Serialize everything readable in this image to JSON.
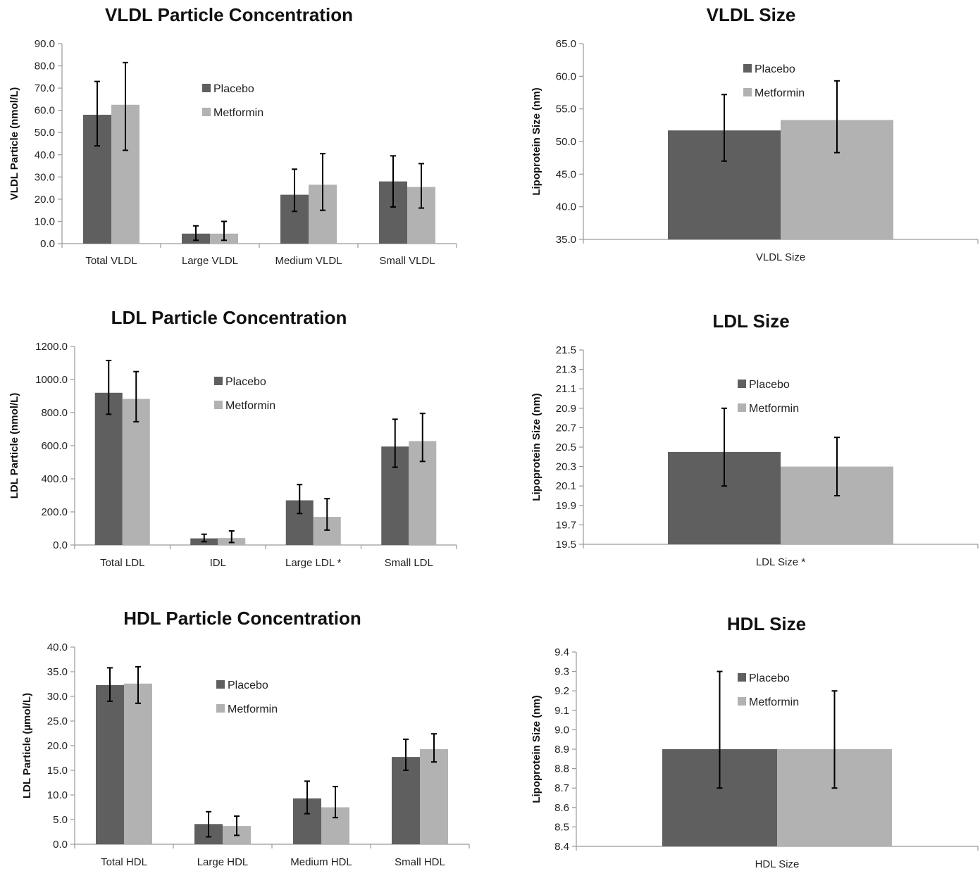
{
  "colors": {
    "placebo": "#5f5f5f",
    "metformin": "#b2b2b2",
    "axis": "#9a9a9a"
  },
  "chart_data": [
    {
      "type": "bar",
      "title": "VLDL Particle Concentration",
      "ylabel": "VLDL Particle (nmol/L)",
      "categories": [
        "Total VLDL",
        "Large VLDL",
        "Medium VLDL",
        "Small VLDL"
      ],
      "ylim": [
        0,
        90
      ],
      "ytick_labels": [
        "0.0",
        "10.0",
        "20.0",
        "30.0",
        "40.0",
        "50.0",
        "60.0",
        "70.0",
        "80.0",
        "90.0"
      ],
      "legend": "top-center",
      "series": [
        {
          "name": "Placebo",
          "values": [
            58,
            4.5,
            22,
            28
          ],
          "err_low": [
            44,
            1.5,
            14.5,
            16.5
          ],
          "err_high": [
            73,
            8,
            33.5,
            39.5
          ]
        },
        {
          "name": "Metformin",
          "values": [
            62.5,
            4.5,
            26.5,
            25.5
          ],
          "err_low": [
            42,
            1.5,
            15,
            16
          ],
          "err_high": [
            81.5,
            10,
            40.5,
            36
          ]
        }
      ]
    },
    {
      "type": "bar",
      "title": "VLDL Size",
      "ylabel": "Lipoprotein Size (nm)",
      "categories": [
        "VLDL Size"
      ],
      "ylim": [
        35,
        65
      ],
      "ytick_labels": [
        "35.0",
        "40.0",
        "45.0",
        "50.0",
        "55.0",
        "60.0",
        "65.0"
      ],
      "legend": "top-center",
      "series": [
        {
          "name": "Placebo",
          "values": [
            51.7
          ],
          "err_low": [
            47
          ],
          "err_high": [
            57.2
          ]
        },
        {
          "name": "Metformin",
          "values": [
            53.3
          ],
          "err_low": [
            48.3
          ],
          "err_high": [
            59.3
          ]
        }
      ]
    },
    {
      "type": "bar",
      "title": "LDL Particle Concentration",
      "ylabel": "LDL Particle (nmol/L)",
      "categories": [
        "Total LDL",
        "IDL",
        "Large LDL *",
        "Small LDL"
      ],
      "ylim": [
        0,
        1200
      ],
      "ytick_labels": [
        "0.0",
        "200.0",
        "400.0",
        "600.0",
        "800.0",
        "1000.0",
        "1200.0"
      ],
      "legend": "top-center",
      "series": [
        {
          "name": "Placebo",
          "values": [
            920,
            40,
            270,
            595
          ],
          "err_low": [
            790,
            20,
            190,
            470
          ],
          "err_high": [
            1115,
            65,
            365,
            760
          ]
        },
        {
          "name": "Metformin",
          "values": [
            883,
            42,
            170,
            628
          ],
          "err_low": [
            745,
            15,
            90,
            505
          ],
          "err_high": [
            1048,
            85,
            280,
            795
          ]
        }
      ]
    },
    {
      "type": "bar",
      "title": "LDL Size",
      "ylabel": "Lipoprotein Size (nm)",
      "categories": [
        "LDL Size *"
      ],
      "ylim": [
        19.5,
        21.5
      ],
      "ytick_labels": [
        "19.5",
        "19.7",
        "19.9",
        "20.1",
        "20.3",
        "20.5",
        "20.7",
        "20.9",
        "21.1",
        "21.3",
        "21.5"
      ],
      "legend": "top-center",
      "series": [
        {
          "name": "Placebo",
          "values": [
            20.45
          ],
          "err_low": [
            20.1
          ],
          "err_high": [
            20.9
          ]
        },
        {
          "name": "Metformin",
          "values": [
            20.3
          ],
          "err_low": [
            20.0
          ],
          "err_high": [
            20.6
          ]
        }
      ]
    },
    {
      "type": "bar",
      "title": "HDL Particle Concentration",
      "ylabel": "LDL Particle (µmol/L)",
      "categories": [
        "Total HDL",
        "Large HDL",
        "Medium HDL",
        "Small HDL"
      ],
      "ylim": [
        0,
        40
      ],
      "ytick_labels": [
        "0.0",
        "5.0",
        "10.0",
        "15.0",
        "20.0",
        "25.0",
        "30.0",
        "35.0",
        "40.0"
      ],
      "legend": "top-center",
      "series": [
        {
          "name": "Placebo",
          "values": [
            32.3,
            4.1,
            9.3,
            17.7
          ],
          "err_low": [
            29,
            1.5,
            6.2,
            15
          ],
          "err_high": [
            35.8,
            6.6,
            12.8,
            21.3
          ]
        },
        {
          "name": "Metformin",
          "values": [
            32.6,
            3.7,
            7.5,
            19.3
          ],
          "err_low": [
            28.6,
            1.8,
            5.4,
            16.7
          ],
          "err_high": [
            36,
            5.7,
            11.7,
            22.4
          ]
        }
      ]
    },
    {
      "type": "bar",
      "title": "HDL Size",
      "ylabel": "Lipoprotein Size (nm)",
      "categories": [
        "HDL Size"
      ],
      "ylim": [
        8.4,
        9.4
      ],
      "ytick_labels": [
        "8.4",
        "8.5",
        "8.6",
        "8.7",
        "8.8",
        "8.9",
        "9.0",
        "9.1",
        "9.2",
        "9.3",
        "9.4"
      ],
      "legend": "top-center",
      "series": [
        {
          "name": "Placebo",
          "values": [
            8.9
          ],
          "err_low": [
            8.7
          ],
          "err_high": [
            9.3
          ]
        },
        {
          "name": "Metformin",
          "values": [
            8.9
          ],
          "err_low": [
            8.7
          ],
          "err_high": [
            9.2
          ]
        }
      ]
    }
  ]
}
